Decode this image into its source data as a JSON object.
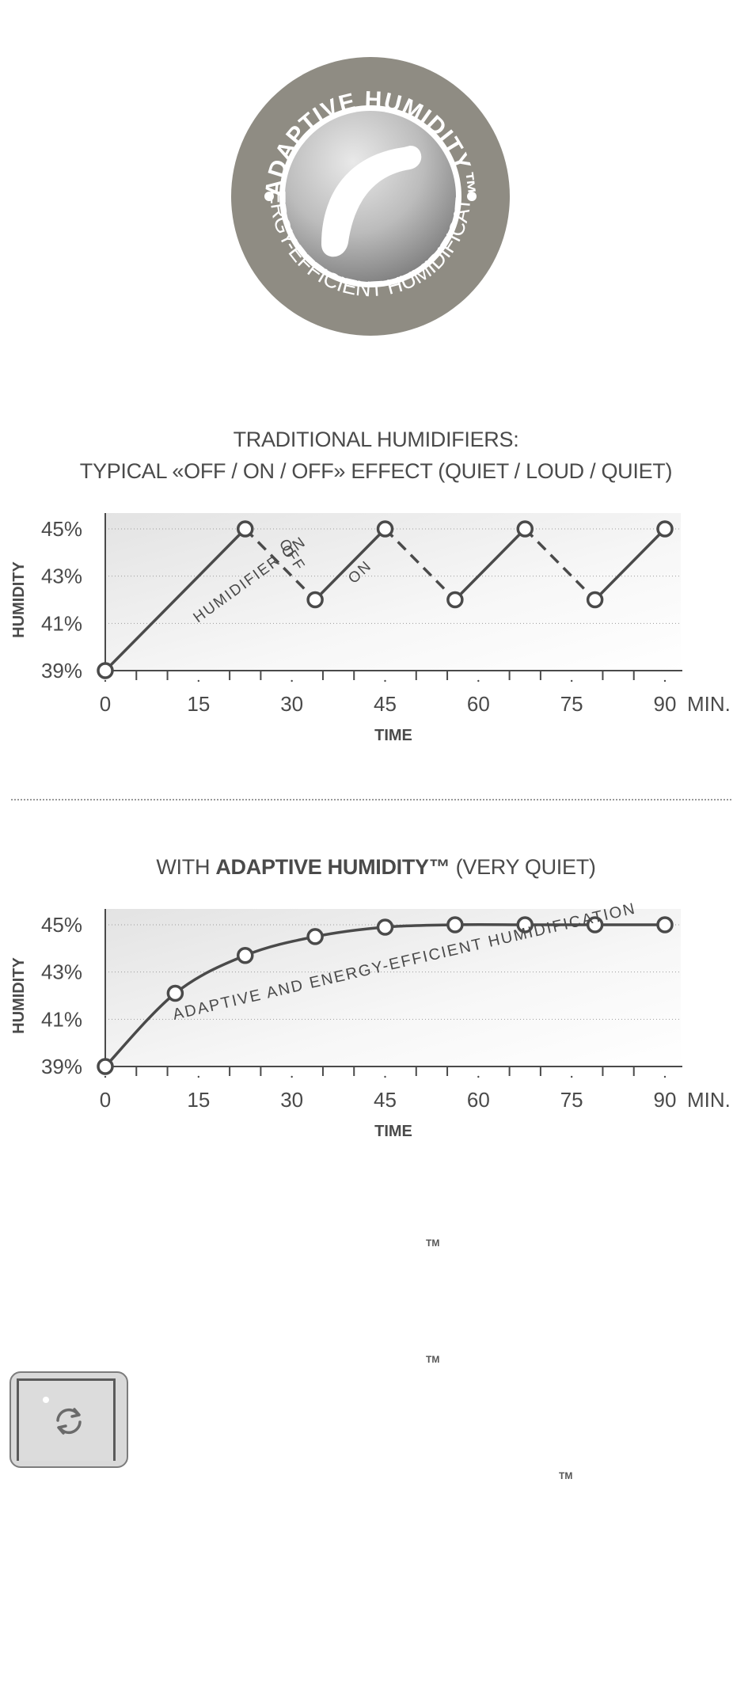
{
  "logo": {
    "ring_top_text": "ADAPTIVE HUMIDITY™",
    "ring_bottom_text": "ENERGY-EFFICIENT HUMIDIFICATION",
    "colors": {
      "ring": "#8f8c83",
      "inner": "#a9a9a9",
      "swoosh": "#ffffff"
    }
  },
  "chart1": {
    "title_line1": "TRADITIONAL HUMIDIFIERS:",
    "title_line2": "TYPICAL «OFF / ON / OFF» EFFECT (QUIET / LOUD / QUIET)"
  },
  "chart2": {
    "title_prefix": "WITH ",
    "title_bold": "ADAPTIVE HUMIDITY™",
    "title_suffix": " (VERY QUIET)"
  },
  "chart_data": [
    {
      "type": "line",
      "xlabel": "TIME",
      "ylabel": "HUMIDITY",
      "x_unit_label": "MIN.",
      "x_ticks": [
        0,
        15,
        30,
        45,
        60,
        75,
        90
      ],
      "y_ticks": [
        "39%",
        "41%",
        "43%",
        "45%"
      ],
      "xlim": [
        0,
        90
      ],
      "ylim": [
        39,
        45
      ],
      "grid": true,
      "points": [
        {
          "x": 0,
          "y": 39
        },
        {
          "x": 22.5,
          "y": 45
        },
        {
          "x": 33.75,
          "y": 42
        },
        {
          "x": 45,
          "y": 45
        },
        {
          "x": 56.25,
          "y": 42
        },
        {
          "x": 67.5,
          "y": 45
        },
        {
          "x": 78.75,
          "y": 42
        },
        {
          "x": 90,
          "y": 45
        }
      ],
      "segments": [
        "solid",
        "dashed",
        "solid",
        "dashed",
        "solid",
        "dashed",
        "solid"
      ],
      "annotations": [
        {
          "text": "HUMIDIFIER ON"
        },
        {
          "text": "OFF"
        },
        {
          "text": "ON"
        }
      ]
    },
    {
      "type": "line",
      "xlabel": "TIME",
      "ylabel": "HUMIDITY",
      "x_unit_label": "MIN.",
      "x_ticks": [
        0,
        15,
        30,
        45,
        60,
        75,
        90
      ],
      "y_ticks": [
        "39%",
        "41%",
        "43%",
        "45%"
      ],
      "xlim": [
        0,
        90
      ],
      "ylim": [
        39,
        45
      ],
      "grid": true,
      "points": [
        {
          "x": 0,
          "y": 39
        },
        {
          "x": 11.25,
          "y": 42.1
        },
        {
          "x": 22.5,
          "y": 43.7
        },
        {
          "x": 33.75,
          "y": 44.5
        },
        {
          "x": 45,
          "y": 44.9
        },
        {
          "x": 56.25,
          "y": 45
        },
        {
          "x": 67.5,
          "y": 45
        },
        {
          "x": 78.75,
          "y": 45
        },
        {
          "x": 90,
          "y": 45
        }
      ],
      "curve": "smooth",
      "annotations": [
        {
          "text": "ADAPTIVE AND ENERGY-EFFICIENT HUMIDIFICATION"
        }
      ]
    }
  ],
  "tm_marks": [
    "TM",
    "TM",
    "TM"
  ],
  "sync_button": {
    "icon": "refresh-icon"
  }
}
